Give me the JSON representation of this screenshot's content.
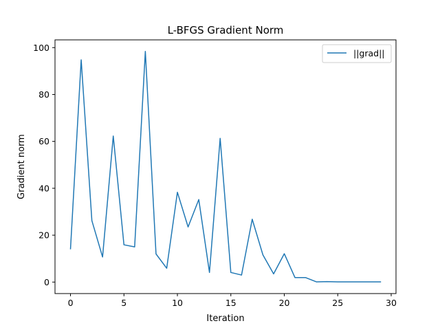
{
  "chart_data": {
    "type": "line",
    "title": "L-BFGS Gradient Norm",
    "xlabel": "Iteration",
    "ylabel": "Gradient norm",
    "xlim": [
      -1.45,
      30.45
    ],
    "ylim": [
      -4.9,
      103.3
    ],
    "xticks": [
      0,
      5,
      10,
      15,
      20,
      25,
      30
    ],
    "yticks": [
      0,
      20,
      40,
      60,
      80,
      100
    ],
    "grid": false,
    "legend": "top-right",
    "series": [
      {
        "name": "||grad||",
        "color": "#1f77b4",
        "x": [
          0,
          1,
          2,
          3,
          4,
          5,
          6,
          7,
          8,
          9,
          10,
          11,
          12,
          13,
          14,
          15,
          16,
          17,
          18,
          19,
          20,
          21,
          22,
          23,
          24,
          25,
          26,
          27,
          28,
          29
        ],
        "values": [
          14.2,
          94.8,
          26.2,
          10.7,
          62.3,
          15.9,
          15.0,
          98.4,
          12.0,
          5.9,
          38.3,
          23.5,
          35.2,
          4.1,
          61.3,
          4.1,
          3.0,
          26.8,
          11.6,
          3.5,
          12.1,
          1.9,
          1.9,
          0.1,
          0.2,
          0.1,
          0.1,
          0.1,
          0.1,
          0.1
        ]
      }
    ]
  }
}
